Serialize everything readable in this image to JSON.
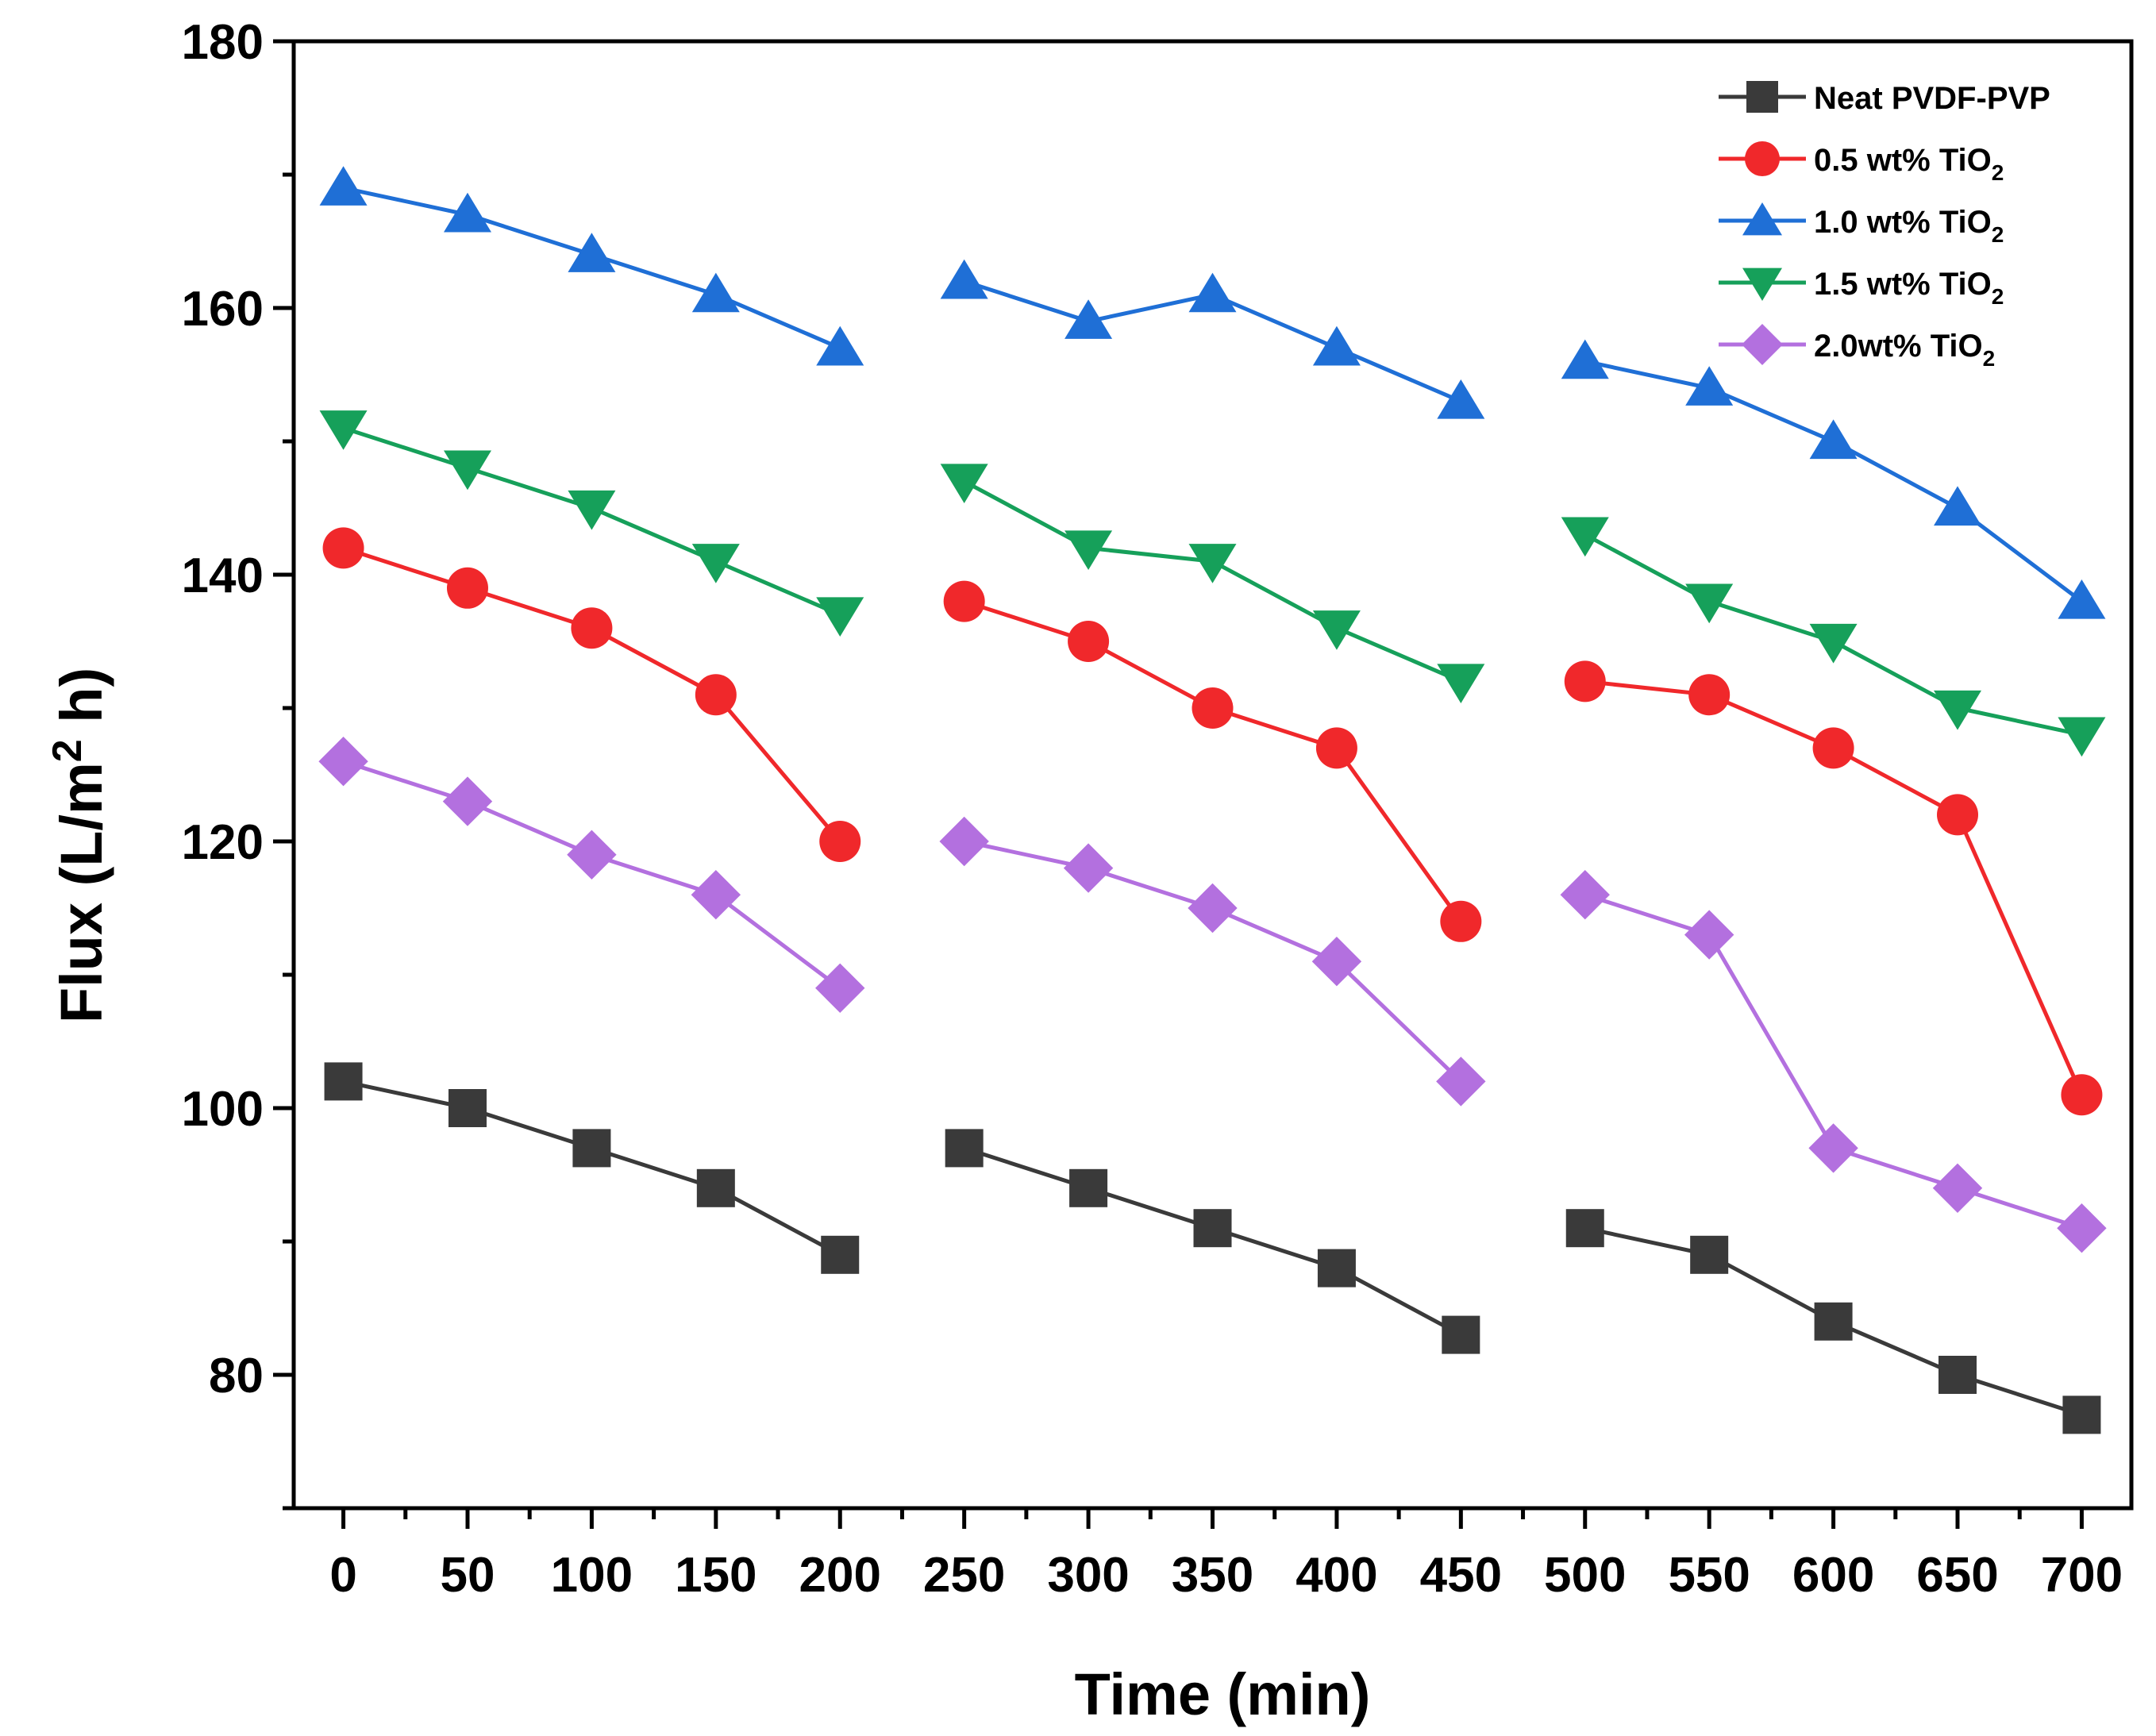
{
  "chart_data": {
    "type": "line",
    "title": "",
    "xlabel": "Time (min)",
    "ylabel": "Flux (L/m2 h)",
    "ylabel_parts": {
      "before": "Flux (L/m",
      "sup": "2",
      "after": " h)"
    },
    "xlim": [
      -20,
      720
    ],
    "ylim": [
      70,
      180
    ],
    "x_ticks": [
      0,
      50,
      100,
      150,
      200,
      250,
      300,
      350,
      400,
      450,
      500,
      550,
      600,
      650,
      700
    ],
    "x_tick_labels": [
      "0",
      "50",
      "100",
      "150",
      "200",
      "250",
      "300",
      "350",
      "400",
      "450",
      "500",
      "550",
      "600",
      "650",
      "700"
    ],
    "y_ticks": [
      80,
      100,
      120,
      140,
      160,
      180
    ],
    "y_tick_labels": [
      "80",
      "100",
      "120",
      "140",
      "160",
      "180"
    ],
    "y_minor_ticks": [
      70,
      90,
      110,
      130,
      150,
      170
    ],
    "legend_position": "top-right",
    "segments": [
      [
        0,
        50,
        100,
        150,
        200
      ],
      [
        250,
        300,
        350,
        400,
        450
      ],
      [
        500,
        550,
        600,
        650,
        700
      ]
    ],
    "x": [
      0,
      50,
      100,
      150,
      200,
      250,
      300,
      350,
      400,
      450,
      500,
      550,
      600,
      650,
      700
    ],
    "series": [
      {
        "name": "Neat PVDF-PVP",
        "legend_main": "Neat PVDF-PVP",
        "legend_sub": "",
        "color": "#3a3a3a",
        "marker": "square",
        "values": [
          102,
          100,
          97,
          94,
          89,
          97,
          94,
          91,
          88,
          83,
          91,
          89,
          84,
          80,
          77
        ]
      },
      {
        "name": "0.5 wt% TiO2",
        "legend_main": "0.5 wt% TiO",
        "legend_sub": "2",
        "color": "#f0282b",
        "marker": "circle",
        "values": [
          142,
          139,
          136,
          131,
          120,
          138,
          135,
          130,
          127,
          114,
          132,
          131,
          127,
          122,
          101
        ]
      },
      {
        "name": "1.0 wt% TiO2",
        "legend_main": "1.0 wt% TiO",
        "legend_sub": "2",
        "color": "#1f6fd6",
        "marker": "triangle-up",
        "values": [
          169,
          167,
          164,
          161,
          157,
          162,
          159,
          161,
          157,
          153,
          156,
          154,
          150,
          145,
          138
        ]
      },
      {
        "name": "1.5 wt% TiO2",
        "legend_main": "1.5 wt% TiO",
        "legend_sub": "2",
        "color": "#16a05a",
        "marker": "triangle-down",
        "values": [
          151,
          148,
          145,
          141,
          137,
          147,
          142,
          141,
          136,
          132,
          143,
          138,
          135,
          130,
          128
        ]
      },
      {
        "name": "2.0wt% TiO2",
        "legend_main": "2.0wt% TiO",
        "legend_sub": "2",
        "color": "#b370df",
        "marker": "diamond",
        "values": [
          126,
          123,
          119,
          116,
          109,
          120,
          118,
          115,
          111,
          102,
          116,
          113,
          97,
          94,
          91
        ]
      }
    ]
  }
}
